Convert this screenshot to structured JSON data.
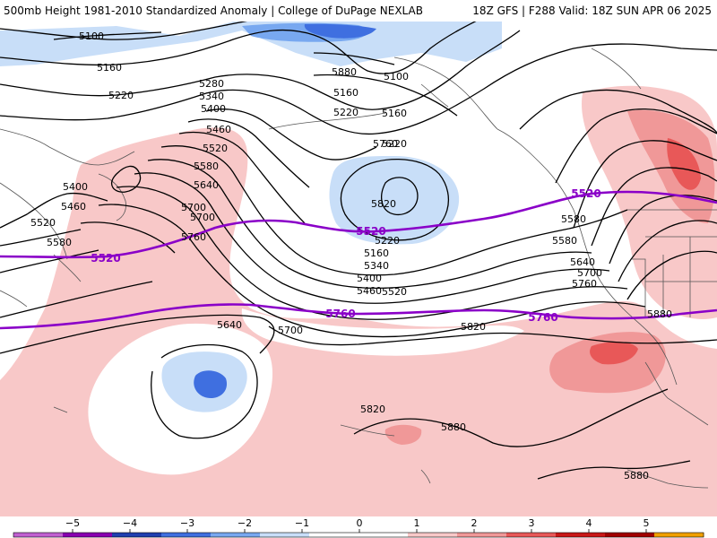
{
  "header": {
    "title": "500mb Height 1981-2010 Standardized Anomaly | College of DuPage NEXLAB",
    "valid": "18Z GFS | F288 Valid: 18Z SUN APR 06 2025"
  },
  "contour_labels": [
    "5100",
    "5160",
    "5220",
    "5280",
    "5340",
    "5400",
    "5460",
    "5520",
    "5580",
    "5640",
    "5700",
    "5760",
    "5820",
    "5880",
    "5160",
    "5220",
    "5100",
    "5160",
    "5220",
    "5220",
    "5160",
    "5340",
    "5400",
    "5460",
    "5520",
    "5580",
    "5640",
    "5700",
    "5760",
    "5580",
    "5640",
    "5700",
    "5820",
    "5820",
    "5880",
    "5880",
    "5880",
    "5400",
    "5460",
    "5520",
    "5580",
    "5700",
    "5760",
    "5820"
  ],
  "highlight_labels": [
    "5520",
    "5520",
    "5520",
    "5760",
    "5760"
  ],
  "colorbar": {
    "ticks": [
      "−5",
      "−4",
      "−3",
      "−2",
      "−1",
      "0",
      "1",
      "2",
      "3",
      "4",
      "5"
    ],
    "colors": [
      "#c060d0",
      "#8800b0",
      "#1f3fb0",
      "#3f6fe0",
      "#78a8f0",
      "#c8def8",
      "#ffffff",
      "#ffffff",
      "#f8c8c8",
      "#f09898",
      "#e85858",
      "#c81818",
      "#a00000",
      "#f0a000"
    ]
  }
}
